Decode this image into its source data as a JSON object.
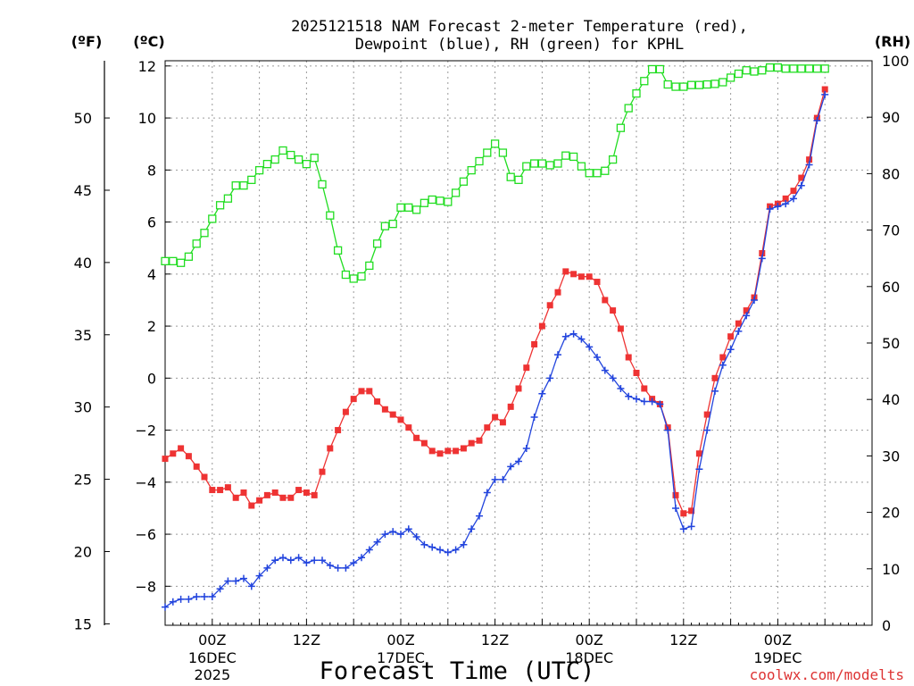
{
  "chart_data": {
    "type": "line",
    "title_line1": "2025121518 NAM Forecast 2-meter Temperature (red),",
    "title_line2": "Dewpoint (blue), RH (green) for KPHL",
    "unit_f": "(ºF)",
    "unit_c": "(ºC)",
    "unit_rh": "(RH)",
    "xlabel": "Forecast Time (UTC)",
    "credit": "coolwx.com/modelts",
    "x_hours": [
      -6,
      84
    ],
    "celsius_ticks": [
      12,
      10,
      8,
      6,
      4,
      2,
      0,
      -2,
      -4,
      -6,
      -8
    ],
    "celsius_tick_labels": [
      "12",
      "10",
      "8",
      "6",
      "4",
      "2",
      "0",
      "−2",
      "−4",
      "−6",
      "−8"
    ],
    "celsius_range": [
      -9.5,
      12.2
    ],
    "fahrenheit_ticks": [
      50,
      45,
      40,
      35,
      30,
      25,
      20,
      15
    ],
    "rh_ticks": [
      100,
      90,
      80,
      70,
      60,
      50,
      40,
      30,
      20,
      10,
      0
    ],
    "rh_range": [
      0,
      100
    ],
    "x_ticks": [
      {
        "hour": 0,
        "label": "00Z",
        "date": "16DEC",
        "year": "2025"
      },
      {
        "hour": 12,
        "label": "12Z",
        "date": "",
        "year": ""
      },
      {
        "hour": 24,
        "label": "00Z",
        "date": "17DEC",
        "year": ""
      },
      {
        "hour": 36,
        "label": "12Z",
        "date": "",
        "year": ""
      },
      {
        "hour": 48,
        "label": "00Z",
        "date": "18DEC",
        "year": ""
      },
      {
        "hour": 60,
        "label": "12Z",
        "date": "",
        "year": ""
      },
      {
        "hour": 72,
        "label": "00Z",
        "date": "19DEC",
        "year": ""
      }
    ],
    "series": [
      {
        "name": "Temperature",
        "color": "#ee3333",
        "marker": "filled-square",
        "axis": "celsius",
        "values": [
          [
            -6,
            -3.1
          ],
          [
            -5,
            -2.9
          ],
          [
            -4,
            -2.7
          ],
          [
            -3,
            -3.0
          ],
          [
            -2,
            -3.4
          ],
          [
            -1,
            -3.8
          ],
          [
            0,
            -4.3
          ],
          [
            1,
            -4.3
          ],
          [
            2,
            -4.2
          ],
          [
            3,
            -4.6
          ],
          [
            4,
            -4.4
          ],
          [
            5,
            -4.9
          ],
          [
            6,
            -4.7
          ],
          [
            7,
            -4.5
          ],
          [
            8,
            -4.4
          ],
          [
            9,
            -4.6
          ],
          [
            10,
            -4.6
          ],
          [
            11,
            -4.3
          ],
          [
            12,
            -4.4
          ],
          [
            13,
            -4.5
          ],
          [
            14,
            -3.6
          ],
          [
            15,
            -2.7
          ],
          [
            16,
            -2.0
          ],
          [
            17,
            -1.3
          ],
          [
            18,
            -0.8
          ],
          [
            19,
            -0.5
          ],
          [
            20,
            -0.5
          ],
          [
            21,
            -0.9
          ],
          [
            22,
            -1.2
          ],
          [
            23,
            -1.4
          ],
          [
            24,
            -1.6
          ],
          [
            25,
            -1.9
          ],
          [
            26,
            -2.3
          ],
          [
            27,
            -2.5
          ],
          [
            28,
            -2.8
          ],
          [
            29,
            -2.9
          ],
          [
            30,
            -2.8
          ],
          [
            31,
            -2.8
          ],
          [
            32,
            -2.7
          ],
          [
            33,
            -2.5
          ],
          [
            34,
            -2.4
          ],
          [
            35,
            -1.9
          ],
          [
            36,
            -1.5
          ],
          [
            37,
            -1.7
          ],
          [
            38,
            -1.1
          ],
          [
            39,
            -0.4
          ],
          [
            40,
            0.4
          ],
          [
            41,
            1.3
          ],
          [
            42,
            2.0
          ],
          [
            43,
            2.8
          ],
          [
            44,
            3.3
          ],
          [
            45,
            4.1
          ],
          [
            46,
            4.0
          ],
          [
            47,
            3.9
          ],
          [
            48,
            3.9
          ],
          [
            49,
            3.7
          ],
          [
            50,
            3.0
          ],
          [
            51,
            2.6
          ],
          [
            52,
            1.9
          ],
          [
            53,
            0.8
          ],
          [
            54,
            0.2
          ],
          [
            55,
            -0.4
          ],
          [
            56,
            -0.8
          ],
          [
            57,
            -1.0
          ],
          [
            58,
            -1.9
          ],
          [
            59,
            -4.5
          ],
          [
            60,
            -5.2
          ],
          [
            61,
            -5.1
          ],
          [
            62,
            -2.9
          ],
          [
            63,
            -1.4
          ],
          [
            64,
            0.0
          ],
          [
            65,
            0.8
          ],
          [
            66,
            1.6
          ],
          [
            67,
            2.1
          ],
          [
            68,
            2.6
          ],
          [
            69,
            3.1
          ],
          [
            70,
            4.8
          ],
          [
            71,
            6.6
          ],
          [
            72,
            6.7
          ],
          [
            73,
            6.9
          ],
          [
            74,
            7.2
          ],
          [
            75,
            7.7
          ],
          [
            76,
            8.4
          ],
          [
            77,
            10.0
          ],
          [
            78,
            11.1
          ]
        ]
      },
      {
        "name": "Dewpoint",
        "color": "#2244dd",
        "marker": "plus",
        "axis": "celsius",
        "values": [
          [
            -6,
            -8.8
          ],
          [
            -5,
            -8.6
          ],
          [
            -4,
            -8.5
          ],
          [
            -3,
            -8.5
          ],
          [
            -2,
            -8.4
          ],
          [
            -1,
            -8.4
          ],
          [
            0,
            -8.4
          ],
          [
            1,
            -8.1
          ],
          [
            2,
            -7.8
          ],
          [
            3,
            -7.8
          ],
          [
            4,
            -7.7
          ],
          [
            5,
            -8.0
          ],
          [
            6,
            -7.6
          ],
          [
            7,
            -7.3
          ],
          [
            8,
            -7.0
          ],
          [
            9,
            -6.9
          ],
          [
            10,
            -7.0
          ],
          [
            11,
            -6.9
          ],
          [
            12,
            -7.1
          ],
          [
            13,
            -7.0
          ],
          [
            14,
            -7.0
          ],
          [
            15,
            -7.2
          ],
          [
            16,
            -7.3
          ],
          [
            17,
            -7.3
          ],
          [
            18,
            -7.1
          ],
          [
            19,
            -6.9
          ],
          [
            20,
            -6.6
          ],
          [
            21,
            -6.3
          ],
          [
            22,
            -6.0
          ],
          [
            23,
            -5.9
          ],
          [
            24,
            -6.0
          ],
          [
            25,
            -5.8
          ],
          [
            26,
            -6.1
          ],
          [
            27,
            -6.4
          ],
          [
            28,
            -6.5
          ],
          [
            29,
            -6.6
          ],
          [
            30,
            -6.7
          ],
          [
            31,
            -6.6
          ],
          [
            32,
            -6.4
          ],
          [
            33,
            -5.8
          ],
          [
            34,
            -5.3
          ],
          [
            35,
            -4.4
          ],
          [
            36,
            -3.9
          ],
          [
            37,
            -3.9
          ],
          [
            38,
            -3.4
          ],
          [
            39,
            -3.2
          ],
          [
            40,
            -2.7
          ],
          [
            41,
            -1.5
          ],
          [
            42,
            -0.6
          ],
          [
            43,
            0.0
          ],
          [
            44,
            0.9
          ],
          [
            45,
            1.6
          ],
          [
            46,
            1.7
          ],
          [
            47,
            1.5
          ],
          [
            48,
            1.2
          ],
          [
            49,
            0.8
          ],
          [
            50,
            0.3
          ],
          [
            51,
            0.0
          ],
          [
            52,
            -0.4
          ],
          [
            53,
            -0.7
          ],
          [
            54,
            -0.8
          ],
          [
            55,
            -0.9
          ],
          [
            56,
            -0.9
          ],
          [
            57,
            -1.0
          ],
          [
            58,
            -2.0
          ],
          [
            59,
            -5.0
          ],
          [
            60,
            -5.8
          ],
          [
            61,
            -5.7
          ],
          [
            62,
            -3.5
          ],
          [
            63,
            -2.0
          ],
          [
            64,
            -0.5
          ],
          [
            65,
            0.5
          ],
          [
            66,
            1.1
          ],
          [
            67,
            1.8
          ],
          [
            68,
            2.4
          ],
          [
            69,
            3.0
          ],
          [
            70,
            4.6
          ],
          [
            71,
            6.5
          ],
          [
            72,
            6.6
          ],
          [
            73,
            6.7
          ],
          [
            74,
            6.9
          ],
          [
            75,
            7.4
          ],
          [
            76,
            8.2
          ],
          [
            77,
            9.9
          ],
          [
            78,
            10.9
          ]
        ]
      },
      {
        "name": "RH",
        "color": "#22dd22",
        "marker": "open-square",
        "axis": "rh",
        "values": [
          [
            -6,
            64.5
          ],
          [
            -5,
            64.5
          ],
          [
            -4,
            64.2
          ],
          [
            -3,
            65.3
          ],
          [
            -2,
            67.6
          ],
          [
            -1,
            69.5
          ],
          [
            0,
            72.0
          ],
          [
            1,
            74.4
          ],
          [
            2,
            75.6
          ],
          [
            3,
            77.9
          ],
          [
            4,
            77.9
          ],
          [
            5,
            78.9
          ],
          [
            6,
            80.6
          ],
          [
            7,
            81.7
          ],
          [
            8,
            82.5
          ],
          [
            9,
            84.1
          ],
          [
            10,
            83.3
          ],
          [
            11,
            82.5
          ],
          [
            12,
            81.7
          ],
          [
            13,
            82.8
          ],
          [
            14,
            78.1
          ],
          [
            15,
            72.6
          ],
          [
            16,
            66.4
          ],
          [
            17,
            62.1
          ],
          [
            18,
            61.4
          ],
          [
            19,
            61.8
          ],
          [
            20,
            63.7
          ],
          [
            21,
            67.6
          ],
          [
            22,
            70.7
          ],
          [
            23,
            71.1
          ],
          [
            24,
            74.0
          ],
          [
            25,
            74.0
          ],
          [
            26,
            73.6
          ],
          [
            27,
            74.8
          ],
          [
            28,
            75.4
          ],
          [
            29,
            75.2
          ],
          [
            30,
            75.0
          ],
          [
            31,
            76.6
          ],
          [
            32,
            78.6
          ],
          [
            33,
            80.6
          ],
          [
            34,
            82.2
          ],
          [
            35,
            83.7
          ],
          [
            36,
            85.3
          ],
          [
            37,
            83.7
          ],
          [
            38,
            79.4
          ],
          [
            39,
            78.9
          ],
          [
            40,
            81.3
          ],
          [
            41,
            81.8
          ],
          [
            42,
            81.8
          ],
          [
            43,
            81.5
          ],
          [
            44,
            81.8
          ],
          [
            45,
            83.2
          ],
          [
            46,
            83.0
          ],
          [
            47,
            81.3
          ],
          [
            48,
            80.1
          ],
          [
            49,
            80.1
          ],
          [
            50,
            80.5
          ],
          [
            51,
            82.5
          ],
          [
            52,
            88.1
          ],
          [
            53,
            91.6
          ],
          [
            54,
            94.2
          ],
          [
            55,
            96.4
          ],
          [
            56,
            98.5
          ],
          [
            57,
            98.5
          ],
          [
            58,
            95.8
          ],
          [
            59,
            95.4
          ],
          [
            60,
            95.4
          ],
          [
            61,
            95.7
          ],
          [
            62,
            95.7
          ],
          [
            63,
            95.8
          ],
          [
            64,
            95.9
          ],
          [
            65,
            96.2
          ],
          [
            66,
            97.0
          ],
          [
            67,
            97.7
          ],
          [
            68,
            98.3
          ],
          [
            69,
            98.1
          ],
          [
            70,
            98.3
          ],
          [
            71,
            98.8
          ],
          [
            72,
            98.8
          ],
          [
            73,
            98.6
          ],
          [
            74,
            98.6
          ],
          [
            75,
            98.6
          ],
          [
            76,
            98.6
          ],
          [
            77,
            98.6
          ],
          [
            78,
            98.6
          ]
        ]
      }
    ]
  }
}
